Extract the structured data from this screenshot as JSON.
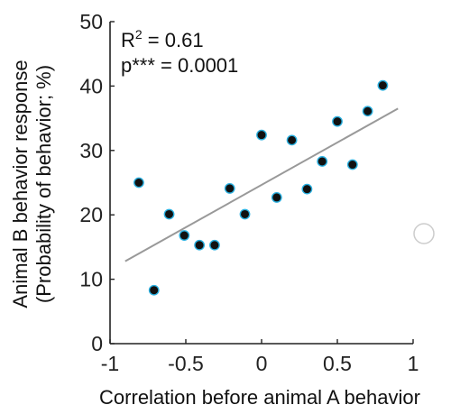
{
  "chart_data": {
    "type": "scatter",
    "title": "",
    "xlabel": "Correlation before animal A behavior",
    "ylabel_lines": [
      "Animal B behavior response",
      "(Probability of behavior; %)"
    ],
    "xlim": [
      -1,
      1
    ],
    "ylim": [
      0,
      50
    ],
    "xticks": [
      -1,
      -0.5,
      0,
      0.5,
      1
    ],
    "xtick_labels": [
      "-1",
      "-0.5",
      "0",
      "0.5",
      "1"
    ],
    "yticks": [
      0,
      10,
      20,
      30,
      40,
      50
    ],
    "ytick_labels": [
      "0",
      "10",
      "20",
      "30",
      "40",
      "50"
    ],
    "annotations": {
      "r2_prefix": "R",
      "r2_sup": "2",
      "r2_value": " = 0.61",
      "p_text": "p*** = 0.0001"
    },
    "points": [
      {
        "x": -0.81,
        "y": 25.0
      },
      {
        "x": -0.71,
        "y": 8.3
      },
      {
        "x": -0.61,
        "y": 20.1
      },
      {
        "x": -0.51,
        "y": 16.8
      },
      {
        "x": -0.41,
        "y": 15.3
      },
      {
        "x": -0.31,
        "y": 15.3
      },
      {
        "x": -0.21,
        "y": 24.1
      },
      {
        "x": -0.11,
        "y": 20.1
      },
      {
        "x": 0.0,
        "y": 32.4
      },
      {
        "x": 0.1,
        "y": 22.7
      },
      {
        "x": 0.2,
        "y": 31.6
      },
      {
        "x": 0.3,
        "y": 24.0
      },
      {
        "x": 0.4,
        "y": 28.3
      },
      {
        "x": 0.5,
        "y": 34.5
      },
      {
        "x": 0.6,
        "y": 27.8
      },
      {
        "x": 0.7,
        "y": 36.1
      },
      {
        "x": 0.8,
        "y": 40.1
      }
    ],
    "fit_line": {
      "x": [
        -0.9,
        0.9
      ],
      "y": [
        12.8,
        36.5
      ],
      "color": "#999999"
    },
    "marker_fill": "#111111",
    "marker_edge": "#2ab0e0",
    "grid": false,
    "legend": "none"
  }
}
